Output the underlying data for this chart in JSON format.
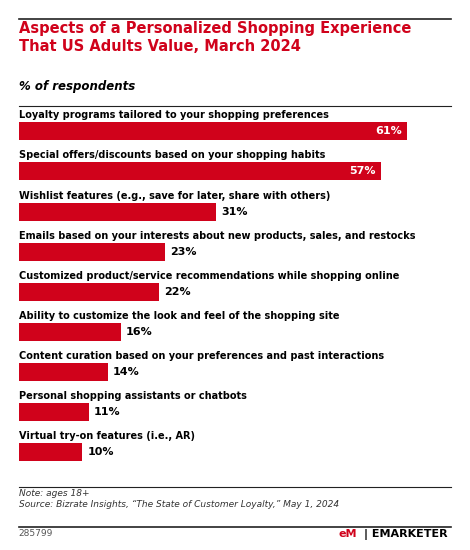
{
  "title": "Aspects of a Personalized Shopping Experience\nThat US Adults Value, March 2024",
  "subtitle": "% of respondents",
  "categories": [
    "Loyalty programs tailored to your shopping preferences",
    "Special offers/discounts based on your shopping habits",
    "Wishlist features (e.g., save for later, share with others)",
    "Emails based on your interests about new products, sales, and restocks",
    "Customized product/service recommendations while shopping online",
    "Ability to customize the look and feel of the shopping site",
    "Content curation based on your preferences and past interactions",
    "Personal shopping assistants or chatbots",
    "Virtual try-on features (i.e., AR)"
  ],
  "values": [
    61,
    57,
    31,
    23,
    22,
    16,
    14,
    11,
    10
  ],
  "bar_color": "#d0021b",
  "label_color_inside": "#ffffff",
  "label_color_outside": "#000000",
  "title_color": "#d0021b",
  "subtitle_color": "#000000",
  "bg_color": "#ffffff",
  "note_text": "Note: ages 18+\nSource: Bizrate Insights, “The State of Customer Loyalty,” May 1, 2024",
  "watermark": "285799",
  "threshold_inside": 40,
  "xlim": [
    0,
    68
  ]
}
